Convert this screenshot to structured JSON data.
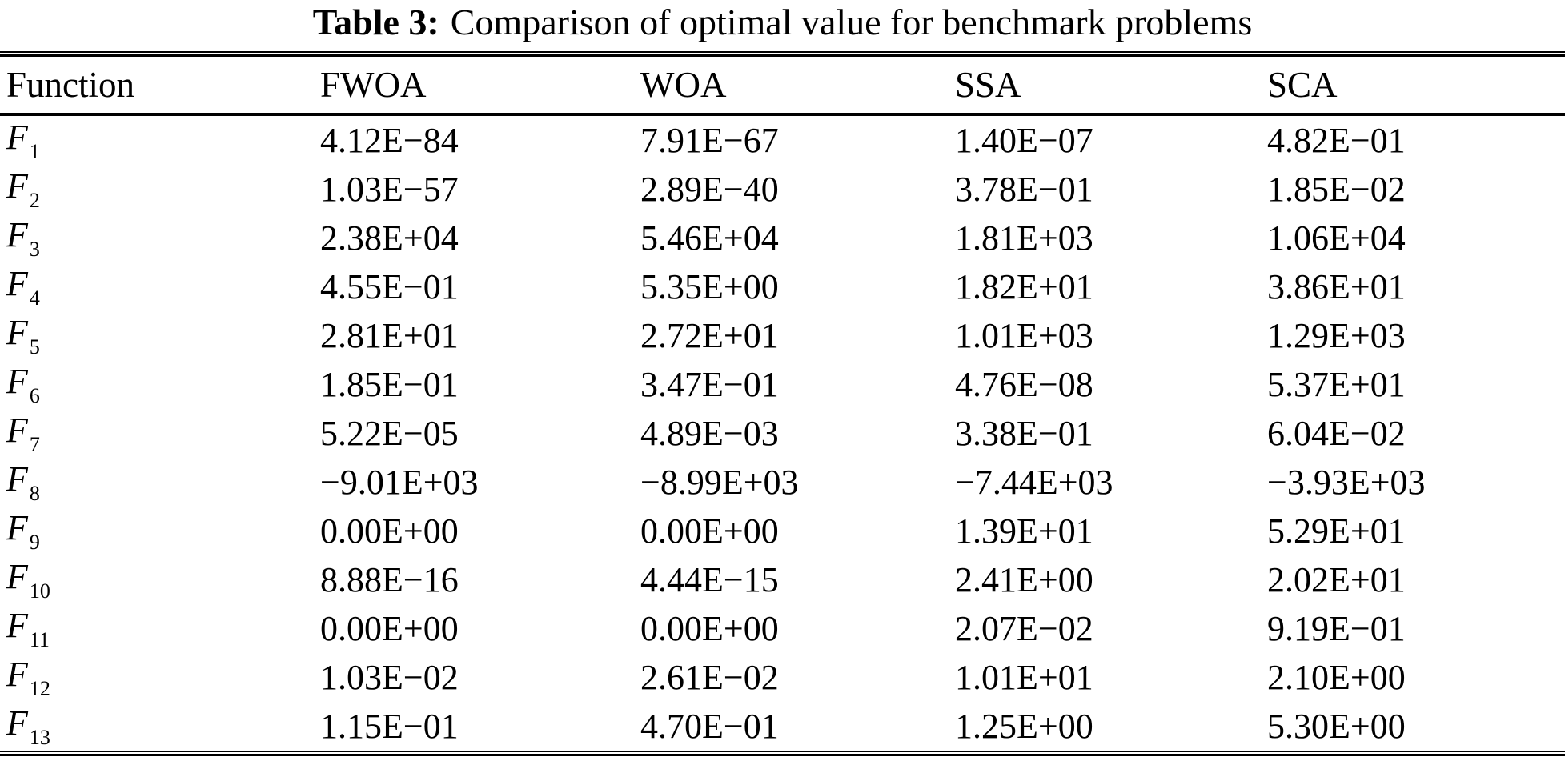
{
  "title": {
    "label": "Table 3:",
    "text": "Comparison of optimal value for benchmark problems"
  },
  "colors": {
    "text": "#000000",
    "background": "#ffffff",
    "rule": "#000000"
  },
  "table": {
    "columns": [
      "Function",
      "FWOA",
      "WOA",
      "SSA",
      "SCA"
    ],
    "rows": [
      {
        "function_base": "F",
        "function_sub": "1",
        "values": [
          "4.12E−84",
          "7.91E−67",
          "1.40E−07",
          "4.82E−01"
        ]
      },
      {
        "function_base": "F",
        "function_sub": "2",
        "values": [
          "1.03E−57",
          "2.89E−40",
          "3.78E−01",
          "1.85E−02"
        ]
      },
      {
        "function_base": "F",
        "function_sub": "3",
        "values": [
          "2.38E+04",
          "5.46E+04",
          "1.81E+03",
          "1.06E+04"
        ]
      },
      {
        "function_base": "F",
        "function_sub": "4",
        "values": [
          "4.55E−01",
          "5.35E+00",
          "1.82E+01",
          "3.86E+01"
        ]
      },
      {
        "function_base": "F",
        "function_sub": "5",
        "values": [
          "2.81E+01",
          "2.72E+01",
          "1.01E+03",
          "1.29E+03"
        ]
      },
      {
        "function_base": "F",
        "function_sub": "6",
        "values": [
          "1.85E−01",
          "3.47E−01",
          "4.76E−08",
          "5.37E+01"
        ]
      },
      {
        "function_base": "F",
        "function_sub": "7",
        "values": [
          "5.22E−05",
          "4.89E−03",
          "3.38E−01",
          "6.04E−02"
        ]
      },
      {
        "function_base": "F",
        "function_sub": "8",
        "values": [
          "−9.01E+03",
          "−8.99E+03",
          "−7.44E+03",
          "−3.93E+03"
        ]
      },
      {
        "function_base": "F",
        "function_sub": "9",
        "values": [
          "0.00E+00",
          "0.00E+00",
          "1.39E+01",
          "5.29E+01"
        ]
      },
      {
        "function_base": "F",
        "function_sub": "10",
        "values": [
          "8.88E−16",
          "4.44E−15",
          "2.41E+00",
          "2.02E+01"
        ]
      },
      {
        "function_base": "F",
        "function_sub": "11",
        "values": [
          "0.00E+00",
          "0.00E+00",
          "2.07E−02",
          "9.19E−01"
        ]
      },
      {
        "function_base": "F",
        "function_sub": "12",
        "values": [
          "1.03E−02",
          "2.61E−02",
          "1.01E+01",
          "2.10E+00"
        ]
      },
      {
        "function_base": "F",
        "function_sub": "13",
        "values": [
          "1.15E−01",
          "4.70E−01",
          "1.25E+00",
          "5.30E+00"
        ]
      }
    ]
  }
}
